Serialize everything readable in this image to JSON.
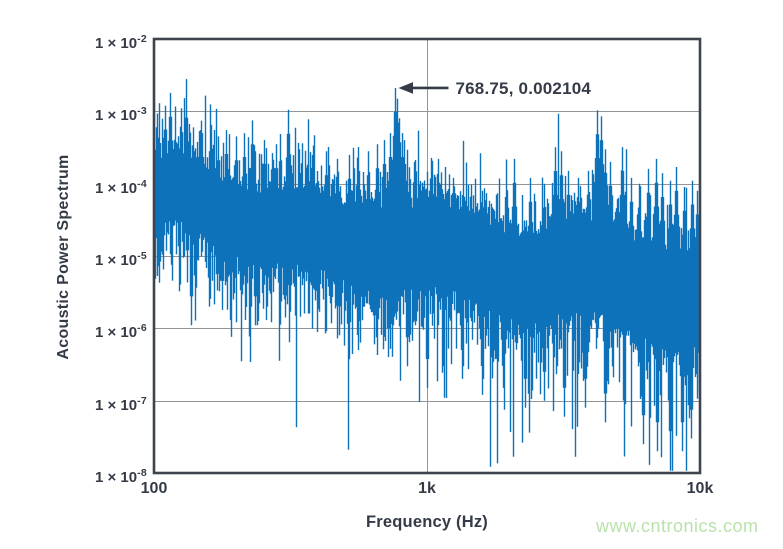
{
  "page": {
    "background": "#ffffff"
  },
  "watermark": {
    "text": "www.cntronics.com",
    "color": "#b9e2ab"
  },
  "chart_data": {
    "type": "line",
    "title": "",
    "xlabel": "Frequency (Hz)",
    "ylabel": "Acoustic Power Spectrum",
    "x_scale": "log",
    "y_scale": "log",
    "xlim": [
      100,
      10000
    ],
    "ylim": [
      1e-08,
      0.01
    ],
    "grid": true,
    "legend": "none",
    "x_ticks": [
      {
        "value": 100,
        "label": "100"
      },
      {
        "value": 1000,
        "label": "1k"
      },
      {
        "value": 10000,
        "label": "10k"
      }
    ],
    "y_ticks": [
      {
        "value": 0.01,
        "mantissa": "1 × 10",
        "exponent": "-2"
      },
      {
        "value": 0.001,
        "mantissa": "1 × 10",
        "exponent": "-3"
      },
      {
        "value": 0.0001,
        "mantissa": "1 × 10",
        "exponent": "-4"
      },
      {
        "value": 1e-05,
        "mantissa": "1 × 10",
        "exponent": "-5"
      },
      {
        "value": 1e-06,
        "mantissa": "1 × 10",
        "exponent": "-6"
      },
      {
        "value": 1e-07,
        "mantissa": "1 × 10",
        "exponent": "-7"
      },
      {
        "value": 1e-08,
        "mantissa": "1 × 10",
        "exponent": "-8"
      }
    ],
    "annotation": {
      "x": 768.75,
      "y": 0.002104,
      "label": "768.75, 0.002104"
    },
    "colors": {
      "line": "#0d72b9",
      "axis": "#3e444d",
      "grid": "#939598",
      "text": "#343b46"
    },
    "series": [
      {
        "name": "Acoustic Power Spectrum",
        "color": "#0d72b9",
        "trend_loglog": [
          [
            2.0,
            -3.72
          ],
          [
            2.06,
            -3.62
          ],
          [
            2.12,
            -3.64
          ],
          [
            2.2,
            -3.74
          ],
          [
            2.3,
            -3.84
          ],
          [
            2.4,
            -3.93
          ],
          [
            2.5,
            -4.0
          ],
          [
            2.6,
            -4.06
          ],
          [
            2.7,
            -4.12
          ],
          [
            2.8,
            -4.16
          ],
          [
            2.886,
            -4.1
          ],
          [
            2.95,
            -4.16
          ],
          [
            3.0,
            -4.2
          ],
          [
            3.1,
            -4.32
          ],
          [
            3.2,
            -4.44
          ],
          [
            3.3,
            -4.52
          ],
          [
            3.4,
            -4.58
          ],
          [
            3.48,
            -4.55
          ],
          [
            3.6,
            -4.62
          ],
          [
            3.63,
            -4.52
          ],
          [
            3.7,
            -4.66
          ],
          [
            3.8,
            -4.72
          ],
          [
            3.9,
            -4.78
          ],
          [
            4.0,
            -4.82
          ]
        ],
        "peaks": [
          [
            105,
            0.0007
          ],
          [
            110,
            0.0012
          ],
          [
            115,
            0.0018
          ],
          [
            120,
            0.0008
          ],
          [
            126,
            0.0011
          ],
          [
            131,
            0.00175
          ],
          [
            140,
            0.0006
          ],
          [
            150,
            0.0005
          ],
          [
            163,
            0.00065
          ],
          [
            172,
            0.00045
          ],
          [
            185,
            0.00055
          ],
          [
            200,
            0.00045
          ],
          [
            215,
            0.0005
          ],
          [
            230,
            0.00075
          ],
          [
            255,
            0.0004
          ],
          [
            280,
            0.00035
          ],
          [
            310,
            0.00105
          ],
          [
            340,
            0.0003
          ],
          [
            380,
            0.00025
          ],
          [
            430,
            0.00028
          ],
          [
            470,
            0.00022
          ],
          [
            520,
            0.00025
          ],
          [
            560,
            0.00032
          ],
          [
            610,
            0.00028
          ],
          [
            660,
            0.00035
          ],
          [
            700,
            0.0004
          ],
          [
            735,
            0.0005
          ],
          [
            768.75,
            0.002104
          ],
          [
            782,
            0.0015
          ],
          [
            795,
            0.0008
          ],
          [
            810,
            0.0005
          ],
          [
            830,
            0.0004
          ],
          [
            900,
            0.0002
          ],
          [
            1000,
            0.00014
          ],
          [
            1100,
            0.00022
          ],
          [
            1250,
            0.00012
          ],
          [
            1400,
            9e-05
          ],
          [
            1600,
            8e-05
          ],
          [
            1800,
            7e-05
          ],
          [
            2100,
            0.00022
          ],
          [
            2400,
            0.00012
          ],
          [
            2700,
            0.0001
          ],
          [
            2950,
            0.00032
          ],
          [
            3100,
            0.00028
          ],
          [
            3300,
            0.00015
          ],
          [
            3600,
            0.00012
          ],
          [
            3900,
            0.00015
          ],
          [
            4200,
            0.00103
          ],
          [
            4350,
            0.00085
          ],
          [
            4500,
            0.0003
          ],
          [
            4700,
            0.0002
          ],
          [
            5200,
            0.00032
          ],
          [
            5600,
            0.00012
          ],
          [
            6000,
            0.0001
          ],
          [
            6500,
            0.00016
          ],
          [
            6900,
            0.00022
          ],
          [
            7300,
            0.00014
          ],
          [
            7800,
            0.00011
          ],
          [
            8200,
            0.00017
          ],
          [
            8800,
            9e-05
          ],
          [
            9400,
            0.00011
          ],
          [
            9800,
            8e-05
          ]
        ],
        "dips": [
          [
            137,
            1.1e-06
          ],
          [
            160,
            2e-06
          ],
          [
            178,
            1.8e-06
          ],
          [
            196,
            2.5e-06
          ],
          [
            235,
            1.1e-06
          ],
          [
            260,
            2e-06
          ],
          [
            300,
            2.5e-06
          ],
          [
            330,
            1.5e-06
          ],
          [
            400,
            2e-06
          ],
          [
            480,
            8e-07
          ],
          [
            560,
            5e-07
          ],
          [
            640,
            6e-07
          ],
          [
            720,
            4e-07
          ],
          [
            850,
            3e-07
          ],
          [
            1000,
            1.5e-07
          ],
          [
            1150,
            3e-07
          ],
          [
            1350,
            2e-07
          ],
          [
            1600,
            1.2e-07
          ],
          [
            1900,
            1.5e-07
          ],
          [
            2300,
            8e-08
          ],
          [
            2700,
            1e-07
          ],
          [
            3200,
            6e-08
          ],
          [
            3800,
            8e-08
          ],
          [
            4500,
            5e-08
          ],
          [
            5300,
            4e-08
          ],
          [
            6200,
            2.5e-08
          ],
          [
            7000,
            2e-08
          ],
          [
            7800,
            1.5e-08
          ],
          [
            8600,
            2e-08
          ],
          [
            9300,
            3e-08
          ]
        ],
        "noise": {
          "seed": 1337,
          "top_jitter": 0.55,
          "top_spike_prob": 0.06,
          "band_base": 1.0,
          "band_slope": 0.22,
          "bot_jitter": 0.8,
          "dip_prob": 0.07,
          "dip_gain": 0.5
        }
      }
    ]
  }
}
